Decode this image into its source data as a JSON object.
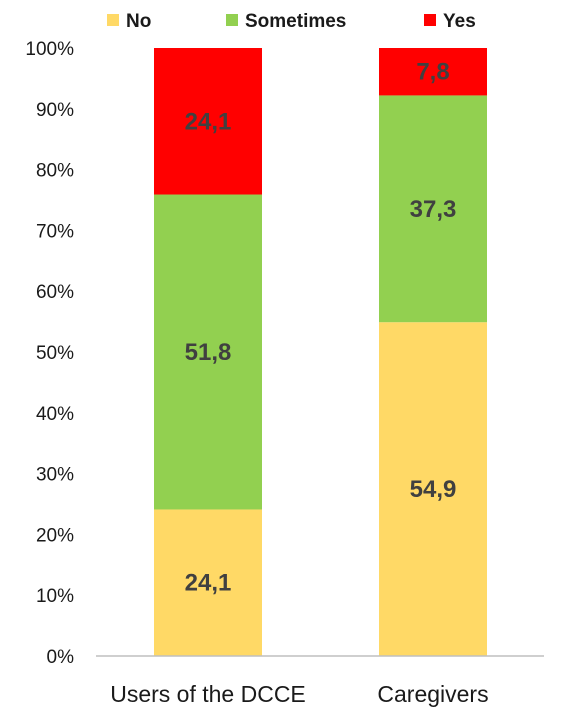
{
  "chart_data": {
    "type": "bar",
    "stacked": true,
    "categories": [
      "Users of the DCCE",
      "Caregivers"
    ],
    "series": [
      {
        "name": "No",
        "color": "#FFD966",
        "values": [
          24.1,
          54.9
        ],
        "labels": [
          "24,1",
          "54,9"
        ]
      },
      {
        "name": "Sometimes",
        "color": "#92D050",
        "values": [
          51.8,
          37.3
        ],
        "labels": [
          "51,8",
          "37,3"
        ]
      },
      {
        "name": "Yes",
        "color": "#FF0000",
        "values": [
          24.1,
          7.8
        ],
        "labels": [
          "24,1",
          "7,8"
        ]
      }
    ],
    "y_ticks": [
      "0%",
      "10%",
      "20%",
      "30%",
      "40%",
      "50%",
      "60%",
      "70%",
      "80%",
      "90%",
      "100%"
    ],
    "ylim": [
      0,
      100
    ],
    "grid": false,
    "legend_position": "top"
  }
}
